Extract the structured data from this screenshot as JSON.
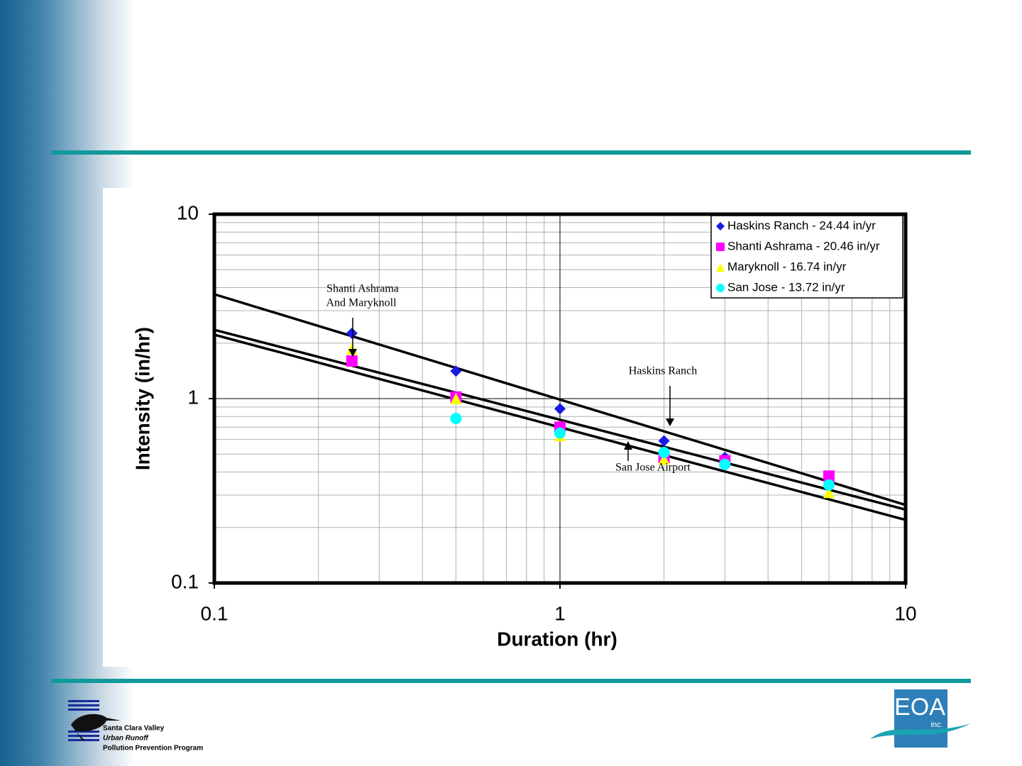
{
  "chart_data": {
    "type": "scatter",
    "xlabel": "Duration (hr)",
    "ylabel": "Intensity (in/hr)",
    "xscale": "log",
    "yscale": "log",
    "xlim": [
      0.1,
      10
    ],
    "ylim": [
      0.1,
      10
    ],
    "xticks": [
      0.1,
      1,
      10
    ],
    "yticks": [
      0.1,
      1,
      10
    ],
    "xminor_ticks": [
      0.2,
      0.3,
      0.4,
      0.5,
      0.6,
      0.7,
      0.8,
      0.9,
      2,
      3,
      4,
      5,
      6,
      7,
      8,
      9
    ],
    "yminor_ticks": [
      0.2,
      0.3,
      0.4,
      0.5,
      0.6,
      0.7,
      0.8,
      0.9,
      2,
      3,
      4,
      5,
      6,
      7,
      8,
      9
    ],
    "grid": true,
    "legend": "upper right",
    "series": [
      {
        "name": "Haskins Ranch - 24.44 in/yr",
        "color": "#1a1ae6",
        "marker": "diamond",
        "x": [
          0.25,
          0.5,
          1,
          2,
          3
        ],
        "values": [
          2.26,
          1.41,
          0.88,
          0.59,
          0.48
        ]
      },
      {
        "name": "Shanti Ashrama - 20.46 in/yr",
        "color": "#ff00ff",
        "marker": "square",
        "x": [
          0.25,
          0.5,
          1,
          2,
          3,
          6
        ],
        "values": [
          1.6,
          1.02,
          0.7,
          0.48,
          0.46,
          0.38
        ]
      },
      {
        "name": "Maryknoll - 16.74 in/yr",
        "color": "#ffff00",
        "marker": "triangle",
        "x": [
          0.25,
          0.5,
          1,
          2,
          6
        ],
        "values": [
          1.86,
          1.0,
          0.63,
          0.47,
          0.31
        ]
      },
      {
        "name": "San Jose - 13.72 in/yr",
        "color": "#00ffff",
        "marker": "circle",
        "x": [
          0.5,
          1,
          2,
          3,
          6
        ],
        "values": [
          0.78,
          0.65,
          0.51,
          0.44,
          0.34
        ]
      }
    ],
    "fit_lines": [
      {
        "x": [
          0.1,
          10
        ],
        "values": [
          3.68,
          0.265
        ]
      },
      {
        "x": [
          0.1,
          10
        ],
        "values": [
          2.36,
          0.25
        ]
      },
      {
        "x": [
          0.1,
          10
        ],
        "values": [
          2.22,
          0.22
        ]
      }
    ],
    "annotations": [
      "Shanti Ashrama",
      "And Maryknoll",
      "Haskins Ranch",
      "San Jose Airport"
    ]
  },
  "footer": {
    "left_logo": [
      "Santa Clara Valley",
      "Urban Runoff",
      "Pollution Prevention Program"
    ],
    "right_logo": [
      "EOA",
      "inc."
    ]
  }
}
